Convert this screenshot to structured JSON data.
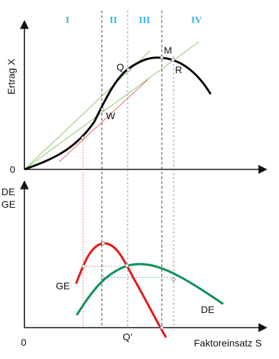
{
  "upper_chart": {
    "y_axis_label": "Ertrag X",
    "origin_label": "0",
    "phases": [
      "I",
      "II",
      "III",
      "IV"
    ],
    "points": {
      "Q": "Q",
      "M": "M",
      "R": "R",
      "W": "W"
    }
  },
  "lower_chart": {
    "y_axis_label_line1": "DE",
    "y_axis_label_line2": "GE",
    "origin_label": "0",
    "x_axis_label": "Faktoreinsatz S",
    "q_prime_label": "Q’",
    "curve_labels": {
      "GE": "GE",
      "DE": "DE"
    }
  },
  "colors": {
    "total_curve": "#000000",
    "ge_curve": "#e31b1b",
    "de_curve": "#10915a",
    "phase_labels": "#33b6e6",
    "ray_lines": "#7fbf5c",
    "tangent_line": "#e35a5a"
  }
}
